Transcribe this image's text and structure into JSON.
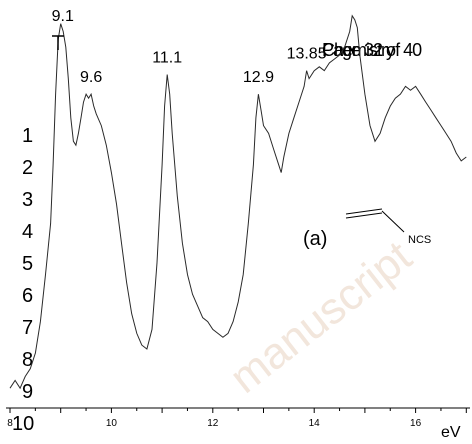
{
  "header": {
    "page_text": "Page 32 of 40",
    "journal_text": "Chemistry"
  },
  "watermark": "manuscript",
  "line_numbers": [
    "1",
    "2",
    "3",
    "4",
    "5",
    "6",
    "7",
    "8",
    "9",
    "10"
  ],
  "panel_label": "(a)",
  "molecule": {
    "group_label": "NCS"
  },
  "colors": {
    "line": "#2a2a2a",
    "watermark": "#f2e6dc"
  },
  "chart_data": {
    "type": "line",
    "title": "",
    "xlabel": "eV",
    "ylabel": "",
    "xlim": [
      8,
      17
    ],
    "ylim": [
      0,
      1
    ],
    "xticks": [
      8,
      10,
      12,
      14,
      16
    ],
    "xtick_labels": [
      "8",
      "10",
      "12",
      "14",
      "16"
    ],
    "grid": false,
    "peak_labels": [
      {
        "text": "9.1",
        "x": 9.1
      },
      {
        "text": "9.6",
        "x": 9.6
      },
      {
        "text": "11.1",
        "x": 11.1
      },
      {
        "text": "12.9",
        "x": 12.9
      },
      {
        "text": "13.85",
        "x": 13.85
      }
    ],
    "series": [
      {
        "x": [
          8.0,
          8.1,
          8.2,
          8.3,
          8.4,
          8.5,
          8.6,
          8.7,
          8.8,
          8.85,
          8.9,
          8.95,
          9.0,
          9.05,
          9.1,
          9.15,
          9.2,
          9.25,
          9.3,
          9.35,
          9.4,
          9.45,
          9.5,
          9.55,
          9.6,
          9.65,
          9.7,
          9.8,
          9.9,
          10.0,
          10.1,
          10.2,
          10.3,
          10.4,
          10.5,
          10.6,
          10.7,
          10.8,
          10.9,
          11.0,
          11.05,
          11.1,
          11.15,
          11.2,
          11.3,
          11.4,
          11.5,
          11.6,
          11.7,
          11.8,
          11.9,
          12.0,
          12.1,
          12.2,
          12.3,
          12.4,
          12.5,
          12.6,
          12.7,
          12.8,
          12.85,
          12.9,
          12.95,
          13.0,
          13.1,
          13.2,
          13.3,
          13.35,
          13.4,
          13.5,
          13.6,
          13.7,
          13.8,
          13.85,
          13.9,
          14.0,
          14.1,
          14.2,
          14.3,
          14.4,
          14.5,
          14.6,
          14.7,
          14.75,
          14.8,
          14.85,
          14.9,
          15.0,
          15.1,
          15.2,
          15.3,
          15.4,
          15.5,
          15.6,
          15.7,
          15.8,
          15.9,
          16.0,
          16.1,
          16.2,
          16.3,
          16.4,
          16.5,
          16.6,
          16.7,
          16.8,
          16.9,
          17.0
        ],
        "y": [
          0.03,
          0.05,
          0.03,
          0.06,
          0.08,
          0.12,
          0.2,
          0.32,
          0.45,
          0.6,
          0.78,
          0.92,
          0.96,
          0.94,
          0.9,
          0.82,
          0.72,
          0.66,
          0.65,
          0.68,
          0.72,
          0.76,
          0.78,
          0.77,
          0.78,
          0.75,
          0.73,
          0.7,
          0.65,
          0.58,
          0.5,
          0.4,
          0.3,
          0.22,
          0.17,
          0.14,
          0.13,
          0.18,
          0.35,
          0.6,
          0.75,
          0.83,
          0.78,
          0.68,
          0.52,
          0.4,
          0.32,
          0.27,
          0.24,
          0.21,
          0.2,
          0.18,
          0.17,
          0.16,
          0.17,
          0.2,
          0.25,
          0.32,
          0.45,
          0.6,
          0.72,
          0.78,
          0.74,
          0.7,
          0.68,
          0.64,
          0.6,
          0.58,
          0.62,
          0.68,
          0.72,
          0.76,
          0.8,
          0.84,
          0.82,
          0.84,
          0.85,
          0.84,
          0.86,
          0.87,
          0.88,
          0.9,
          0.94,
          0.98,
          0.97,
          0.95,
          0.88,
          0.78,
          0.7,
          0.66,
          0.68,
          0.72,
          0.75,
          0.77,
          0.78,
          0.8,
          0.79,
          0.8,
          0.78,
          0.76,
          0.74,
          0.72,
          0.7,
          0.68,
          0.66,
          0.63,
          0.61,
          0.62
        ]
      }
    ]
  }
}
